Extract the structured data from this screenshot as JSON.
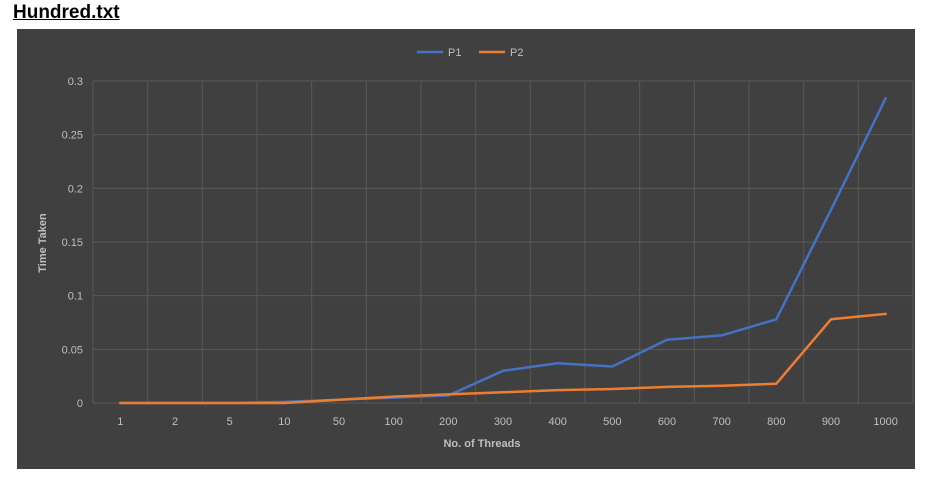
{
  "document": {
    "title": "Hundred.txt"
  },
  "chart_data": {
    "type": "line",
    "xlabel": "No. of Threads",
    "ylabel": "Time Taken",
    "categories": [
      "1",
      "2",
      "5",
      "10",
      "50",
      "100",
      "200",
      "300",
      "400",
      "500",
      "600",
      "700",
      "800",
      "900",
      "1000"
    ],
    "ylim": [
      0,
      0.3
    ],
    "yticks": [
      "0",
      "0.05",
      "0.1",
      "0.15",
      "0.2",
      "0.25",
      "0.3"
    ],
    "grid": true,
    "legend_position": "top",
    "background_color": "#404040",
    "series": [
      {
        "name": "P1",
        "color": "#4472c4",
        "values": [
          0.0,
          0.0,
          0.0,
          0.001,
          0.003,
          0.005,
          0.007,
          0.03,
          0.037,
          0.034,
          0.059,
          0.063,
          0.078,
          0.18,
          0.284
        ]
      },
      {
        "name": "P2",
        "color": "#ed7d31",
        "values": [
          0.0,
          0.0,
          0.0,
          0.0,
          0.003,
          0.006,
          0.008,
          0.01,
          0.012,
          0.013,
          0.015,
          0.016,
          0.018,
          0.078,
          0.083
        ]
      }
    ]
  }
}
